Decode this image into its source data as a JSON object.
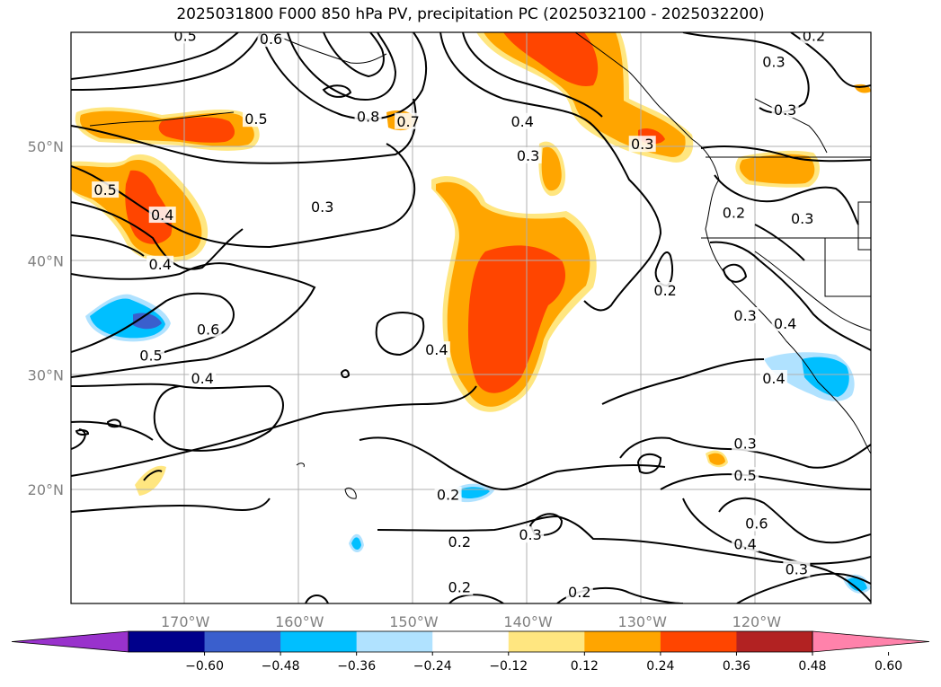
{
  "title": "2025031800 F000 850 hPa PV, precipitation PC (2025032100 - 2025032200)",
  "lon_ticks": [
    {
      "value": -170,
      "label": "170°W"
    },
    {
      "value": -160,
      "label": "160°W"
    },
    {
      "value": -150,
      "label": "150°W"
    },
    {
      "value": -140,
      "label": "140°W"
    },
    {
      "value": -130,
      "label": "130°W"
    },
    {
      "value": -120,
      "label": "120°W"
    }
  ],
  "lat_ticks": [
    {
      "value": 50,
      "label": "50°N"
    },
    {
      "value": 40,
      "label": "40°N"
    },
    {
      "value": 30,
      "label": "30°N"
    },
    {
      "value": 20,
      "label": "20°N"
    }
  ],
  "colorbar": {
    "colors": [
      "#9932cc",
      "#00008b",
      "#3a5fcd",
      "#00bfff",
      "#b0e2ff",
      "#ffffff",
      "#ffe680",
      "#ffa500",
      "#ff4500",
      "#b22222",
      "#ff82ab"
    ],
    "ticks": [
      "−0.60",
      "−0.48",
      "−0.36",
      "−0.24",
      "−0.12",
      "0.12",
      "0.24",
      "0.36",
      "0.48",
      "0.60"
    ]
  },
  "contour_labels": [
    {
      "text": "0.5",
      "lon": -170.0,
      "lat": 59.5
    },
    {
      "text": "0.6",
      "lon": -162.5,
      "lat": 59.2
    },
    {
      "text": "0.8",
      "lon": -154.0,
      "lat": 52.4
    },
    {
      "text": "0.7",
      "lon": -150.5,
      "lat": 52.0
    },
    {
      "text": "0.5",
      "lon": -163.8,
      "lat": 52.2
    },
    {
      "text": "0.4",
      "lon": -140.5,
      "lat": 52.0
    },
    {
      "text": "0.3",
      "lon": -140.0,
      "lat": 49.0
    },
    {
      "text": "0.3",
      "lon": -130.0,
      "lat": 50.0
    },
    {
      "text": "0.3",
      "lon": -118.5,
      "lat": 57.2
    },
    {
      "text": "0.3",
      "lon": -117.5,
      "lat": 53.0
    },
    {
      "text": "0.2",
      "lon": -115.0,
      "lat": 59.5
    },
    {
      "text": "0.5",
      "lon": -177.0,
      "lat": 46.0
    },
    {
      "text": "0.4",
      "lon": -172.0,
      "lat": 43.8
    },
    {
      "text": "0.4",
      "lon": -172.2,
      "lat": 39.5
    },
    {
      "text": "0.3",
      "lon": -158.0,
      "lat": 44.5
    },
    {
      "text": "0.2",
      "lon": -122.0,
      "lat": 44.0
    },
    {
      "text": "0.3",
      "lon": -116.0,
      "lat": 43.5
    },
    {
      "text": "0.2",
      "lon": -128.0,
      "lat": 37.2
    },
    {
      "text": "0.3",
      "lon": -121.0,
      "lat": 35.0
    },
    {
      "text": "0.4",
      "lon": -117.5,
      "lat": 34.3
    },
    {
      "text": "0.6",
      "lon": -168.0,
      "lat": 33.8
    },
    {
      "text": "0.5",
      "lon": -173.0,
      "lat": 31.5
    },
    {
      "text": "0.4",
      "lon": -148.0,
      "lat": 32.0
    },
    {
      "text": "0.4",
      "lon": -168.5,
      "lat": 29.5
    },
    {
      "text": "0.4",
      "lon": -118.5,
      "lat": 29.5
    },
    {
      "text": "0.3",
      "lon": -121.0,
      "lat": 23.8
    },
    {
      "text": "0.5",
      "lon": -121.0,
      "lat": 21.0
    },
    {
      "text": "0.6",
      "lon": -120.0,
      "lat": 16.8
    },
    {
      "text": "0.4",
      "lon": -121.0,
      "lat": 15.0
    },
    {
      "text": "0.3",
      "lon": -116.5,
      "lat": 12.8
    },
    {
      "text": "0.2",
      "lon": -147.0,
      "lat": 19.3
    },
    {
      "text": "0.2",
      "lon": -146.0,
      "lat": 15.2
    },
    {
      "text": "0.3",
      "lon": -139.8,
      "lat": 15.8
    },
    {
      "text": "0.2",
      "lon": -146.0,
      "lat": 11.2
    },
    {
      "text": "0.2",
      "lon": -135.5,
      "lat": 10.8
    }
  ]
}
